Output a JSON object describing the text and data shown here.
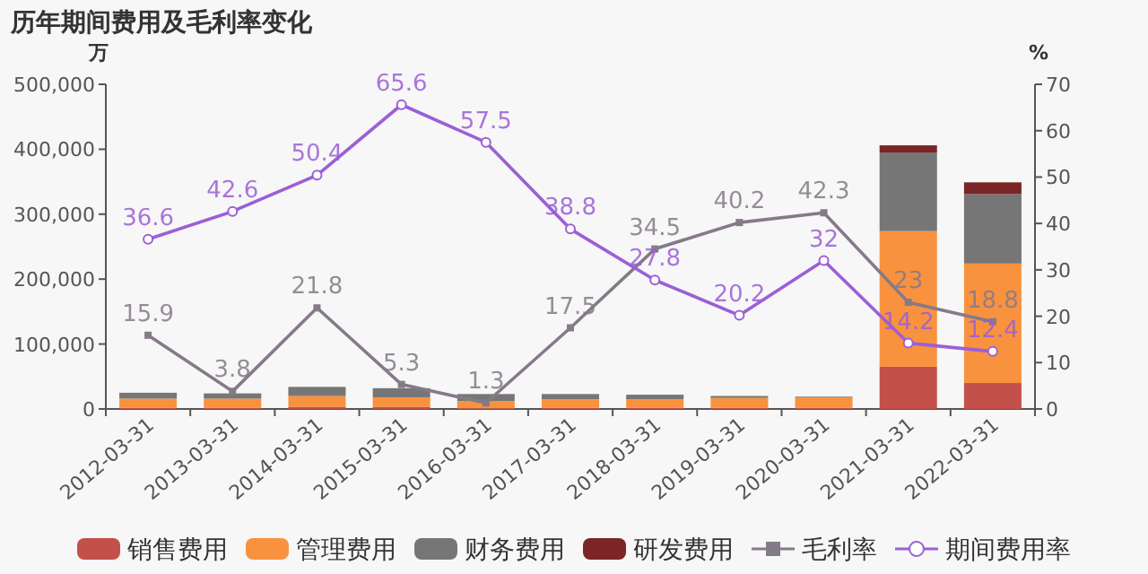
{
  "chart_data": {
    "type": "bar",
    "title": "历年期间费用及毛利率变化",
    "ylabel": "万",
    "y2label": "%",
    "categories": [
      "2012-03-31",
      "2013-03-31",
      "2014-03-31",
      "2015-03-31",
      "2016-03-31",
      "2017-03-31",
      "2018-03-31",
      "2019-03-31",
      "2020-03-31",
      "2021-03-31",
      "2022-03-31"
    ],
    "stacked": true,
    "legend": "bottom",
    "grid": false,
    "ylim": [
      0,
      500000
    ],
    "yticks": [
      {
        "value": 0,
        "label": "0"
      },
      {
        "value": 100000,
        "label": "100,000"
      },
      {
        "value": 200000,
        "label": "200,000"
      },
      {
        "value": 300000,
        "label": "300,000"
      },
      {
        "value": 400000,
        "label": "400,000"
      },
      {
        "value": 500000,
        "label": "500,000"
      }
    ],
    "y2lim": [
      0,
      70
    ],
    "y2ticks": [
      0,
      10,
      20,
      30,
      40,
      50,
      60,
      70
    ],
    "series": [
      {
        "name": "销售费用",
        "color": "#c4504b",
        "values": [
          2000,
          2000,
          3000,
          3000,
          1000,
          2000,
          2000,
          2000,
          2000,
          65000,
          40000
        ]
      },
      {
        "name": "管理费用",
        "color": "#f8923f",
        "values": [
          14000,
          14000,
          17000,
          15000,
          11000,
          13000,
          13000,
          15000,
          16000,
          209000,
          184000
        ]
      },
      {
        "name": "财务费用",
        "color": "#767676",
        "values": [
          9000,
          8000,
          14000,
          14000,
          11000,
          8000,
          7000,
          3000,
          1000,
          121000,
          107000
        ]
      },
      {
        "name": "研发费用",
        "color": "#7b2526",
        "values": [
          0,
          0,
          0,
          0,
          0,
          0,
          0,
          0,
          0,
          11000,
          18000
        ]
      },
      {
        "name": "毛利率",
        "type": "line",
        "axis": "y2",
        "marker": "square",
        "data_labels": true,
        "color": "#857a88",
        "values": [
          15.9,
          3.8,
          21.8,
          5.3,
          1.3,
          17.5,
          34.5,
          40.2,
          42.3,
          23,
          18.8
        ]
      },
      {
        "name": "期间费用率",
        "type": "line",
        "axis": "y2",
        "marker": "circle",
        "data_labels": true,
        "color": "#9b5fd6",
        "values": [
          36.6,
          42.6,
          50.4,
          65.6,
          57.5,
          38.8,
          27.8,
          20.2,
          32,
          14.2,
          12.4
        ]
      }
    ]
  }
}
